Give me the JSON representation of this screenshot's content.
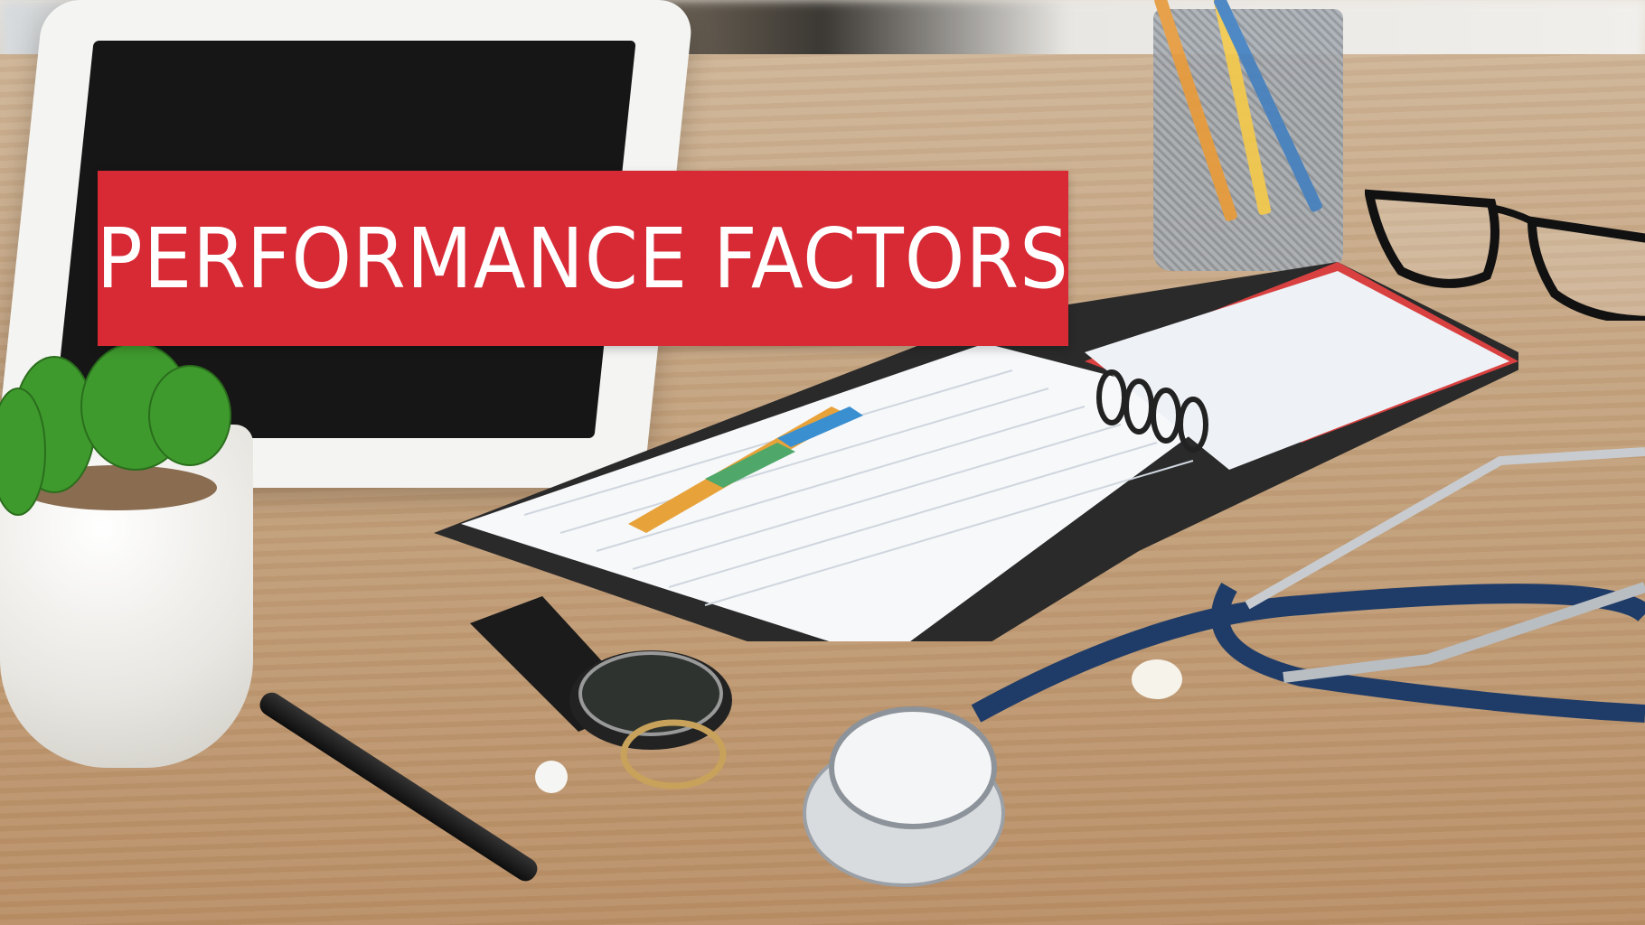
{
  "banner": {
    "title": "PERFORMANCE FACTORS",
    "background_color": "#d72a35",
    "text_color": "#ffffff"
  },
  "scene_objects": [
    "tablet",
    "potted-succulent",
    "pencil-cup",
    "eyeglasses",
    "spiral-planner",
    "pen",
    "wristwatch",
    "stethoscope"
  ]
}
